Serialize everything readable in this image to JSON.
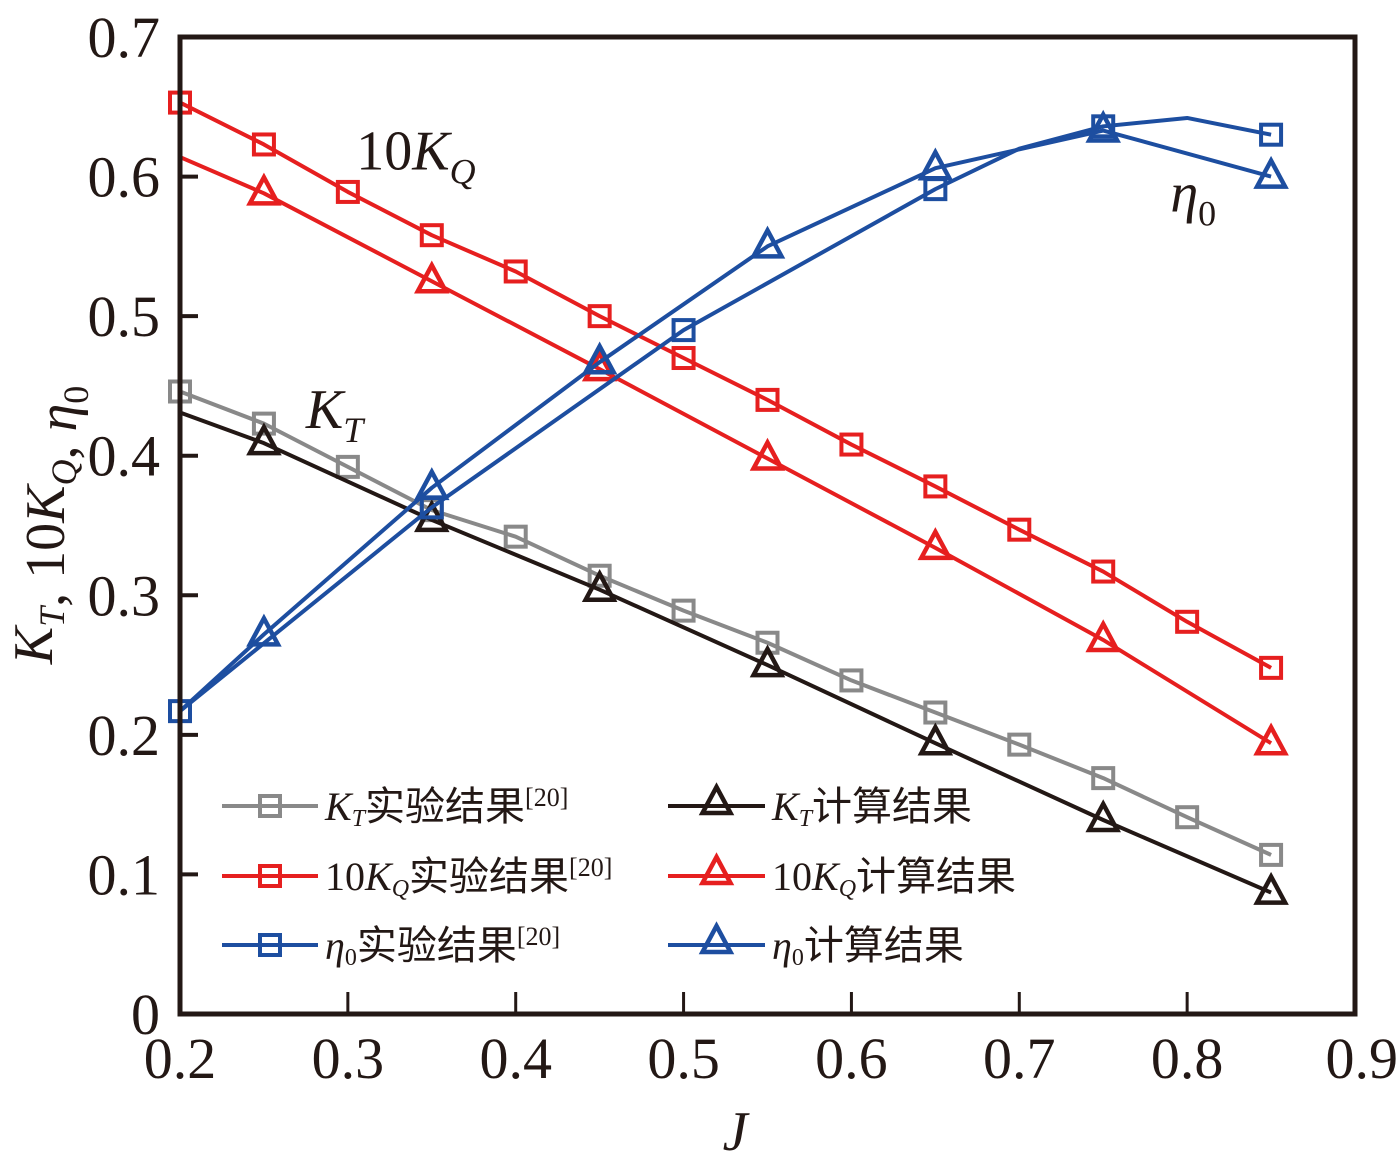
{
  "chart_data": {
    "type": "line",
    "title": "",
    "xlabel": "J",
    "ylabel": {
      "parts": [
        {
          "t": "K",
          "i": true
        },
        {
          "t": "T",
          "sub": true,
          "i": true
        },
        {
          "t": ", 10"
        },
        {
          "t": "K",
          "i": true
        },
        {
          "t": "Q",
          "sub": true,
          "i": true
        },
        {
          "t": ", "
        },
        {
          "t": "η",
          "i": true
        },
        {
          "t": "0",
          "sub": true
        }
      ]
    },
    "xlim": [
      0.2,
      0.9
    ],
    "ylim": [
      0,
      0.7
    ],
    "xticks": [
      "0.2",
      "0.3",
      "0.4",
      "0.5",
      "0.6",
      "0.7",
      "0.8",
      "0.9"
    ],
    "xtick_values": [
      0.2,
      0.3,
      0.4,
      0.5,
      0.6,
      0.7,
      0.8,
      0.9
    ],
    "yticks": [
      "0",
      "0.1",
      "0.2",
      "0.3",
      "0.4",
      "0.5",
      "0.6",
      "0.7"
    ],
    "ytick_values": [
      0,
      0.1,
      0.2,
      0.3,
      0.4,
      0.5,
      0.6,
      0.7
    ],
    "grid": false,
    "legend_placement": "bottom-left",
    "annotations": [
      {
        "id": "kq",
        "base": "10K",
        "sub": "Q",
        "x": 0.305,
        "y": 0.605
      },
      {
        "id": "kt",
        "base": "K",
        "sub": "T",
        "x": 0.275,
        "y": 0.42
      },
      {
        "id": "eta",
        "base": "η",
        "sub": "0",
        "x": 0.79,
        "y": 0.575
      }
    ],
    "series": [
      {
        "name": "KT实验结果[20]",
        "legend": {
          "sym": "K",
          "sub": "T",
          "text": "实验结果",
          "ref": "[20]"
        },
        "color": "#898989",
        "marker": "square",
        "x": [
          0.2,
          0.25,
          0.3,
          0.35,
          0.4,
          0.45,
          0.5,
          0.55,
          0.6,
          0.65,
          0.7,
          0.75,
          0.8,
          0.85
        ],
        "y": [
          0.446,
          0.423,
          0.392,
          0.361,
          0.342,
          0.314,
          0.289,
          0.266,
          0.239,
          0.216,
          0.193,
          0.169,
          0.141,
          0.114
        ]
      },
      {
        "name": "KT计算结果",
        "legend": {
          "sym": "K",
          "sub": "T",
          "text": "计算结果",
          "ref": ""
        },
        "color": "#231815",
        "marker": "triangle",
        "x": [
          0.2,
          0.25,
          0.35,
          0.45,
          0.55,
          0.65,
          0.75,
          0.85
        ],
        "y": [
          0.431,
          0.409,
          0.354,
          0.304,
          0.25,
          0.194,
          0.139,
          0.087
        ],
        "marker_skip_first": true
      },
      {
        "name": "10KQ实验结果[20]",
        "legend": {
          "sym": "10K",
          "sub": "Q",
          "text": "实验结果",
          "ref": "[20]"
        },
        "color": "#e61f1f",
        "marker": "square",
        "x": [
          0.2,
          0.25,
          0.3,
          0.35,
          0.4,
          0.45,
          0.5,
          0.55,
          0.6,
          0.65,
          0.7,
          0.75,
          0.8,
          0.85
        ],
        "y": [
          0.653,
          0.623,
          0.589,
          0.558,
          0.532,
          0.5,
          0.47,
          0.44,
          0.408,
          0.378,
          0.347,
          0.317,
          0.281,
          0.248
        ]
      },
      {
        "name": "10KQ计算结果",
        "legend": {
          "sym": "10K",
          "sub": "Q",
          "text": "计算结果",
          "ref": ""
        },
        "color": "#e61f1f",
        "marker": "triangle",
        "x": [
          0.2,
          0.25,
          0.35,
          0.45,
          0.55,
          0.65,
          0.75,
          0.85
        ],
        "y": [
          0.614,
          0.588,
          0.525,
          0.462,
          0.398,
          0.334,
          0.268,
          0.194
        ],
        "marker_skip_first": true
      },
      {
        "name": "η0实验结果[20]",
        "legend": {
          "sym": "η",
          "sub": "0",
          "text": "实验结果",
          "ref": "[20]"
        },
        "color": "#1d4ea0",
        "marker": "square",
        "x": [
          0.2,
          0.35,
          0.5,
          0.65,
          0.7,
          0.75,
          0.8,
          0.85
        ],
        "y": [
          0.217,
          0.363,
          0.49,
          0.591,
          0.62,
          0.636,
          0.642,
          0.63
        ],
        "marker_indices": [
          0,
          1,
          2,
          3,
          5,
          7
        ]
      },
      {
        "name": "η0计算结果",
        "legend": {
          "sym": "η",
          "sub": "0",
          "text": "计算结果",
          "ref": ""
        },
        "color": "#1d4ea0",
        "marker": "triangle",
        "x": [
          0.2,
          0.25,
          0.35,
          0.45,
          0.55,
          0.65,
          0.75,
          0.85
        ],
        "y": [
          0.217,
          0.272,
          0.377,
          0.467,
          0.55,
          0.606,
          0.633,
          0.6
        ],
        "marker_skip_first": true
      }
    ]
  }
}
